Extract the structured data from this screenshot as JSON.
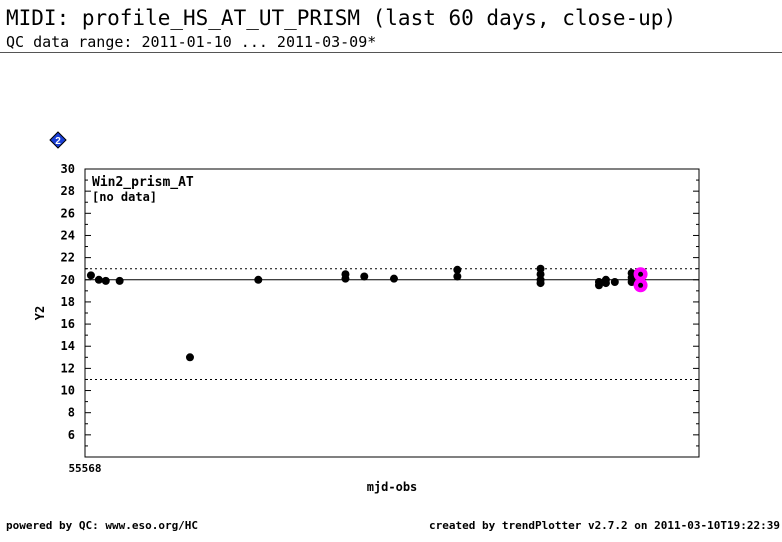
{
  "header": {
    "title": "MIDI: profile_HS_AT_UT_PRISM (last 60 days, close-up)",
    "subtitle": "QC data range: 2011-01-10 ... 2011-03-09*"
  },
  "panel_badge": "2",
  "footer": {
    "left": "powered by QC: www.eso.org/HC",
    "right": "created by trendPlotter v2.7.2 on 2011-03-10T19:22:39"
  },
  "colors": {
    "data_point": "#000000",
    "highlight": "#ff00ff",
    "badge": "#1a3fd6"
  },
  "chart_data": {
    "type": "scatter",
    "xlabel": "mjd-obs",
    "ylabel": "Y2",
    "x_tick_label": "55568",
    "xlim": [
      55568,
      55630
    ],
    "ylim": [
      4,
      30
    ],
    "y_ticks": [
      6,
      8,
      10,
      12,
      14,
      16,
      18,
      20,
      22,
      24,
      26,
      28,
      30
    ],
    "annotations": [
      "Win2_prism_AT",
      "[no data]"
    ],
    "reference_line": 20,
    "threshold_lines": [
      11,
      21
    ],
    "series": [
      {
        "points": [
          [
            55568.6,
            20.4
          ],
          [
            55569.4,
            20.0
          ],
          [
            55570.1,
            19.9
          ],
          [
            55571.5,
            19.9
          ],
          [
            55578.6,
            13.0
          ],
          [
            55585.5,
            20.0
          ],
          [
            55594.3,
            20.5
          ],
          [
            55594.3,
            20.1
          ],
          [
            55596.2,
            20.3
          ],
          [
            55599.2,
            20.1
          ],
          [
            55605.6,
            20.9
          ],
          [
            55605.6,
            20.3
          ],
          [
            55614.0,
            21.0
          ],
          [
            55614.0,
            20.5
          ],
          [
            55614.0,
            20.0
          ],
          [
            55614.0,
            19.7
          ],
          [
            55619.9,
            19.5
          ],
          [
            55619.9,
            19.8
          ],
          [
            55620.6,
            19.7
          ],
          [
            55620.6,
            20.0
          ],
          [
            55621.5,
            19.8
          ],
          [
            55623.2,
            20.6
          ],
          [
            55623.2,
            20.2
          ],
          [
            55623.2,
            19.8
          ]
        ]
      },
      {
        "highlight": true,
        "points": [
          [
            55624.1,
            20.5
          ],
          [
            55624.1,
            19.5
          ]
        ]
      }
    ]
  }
}
